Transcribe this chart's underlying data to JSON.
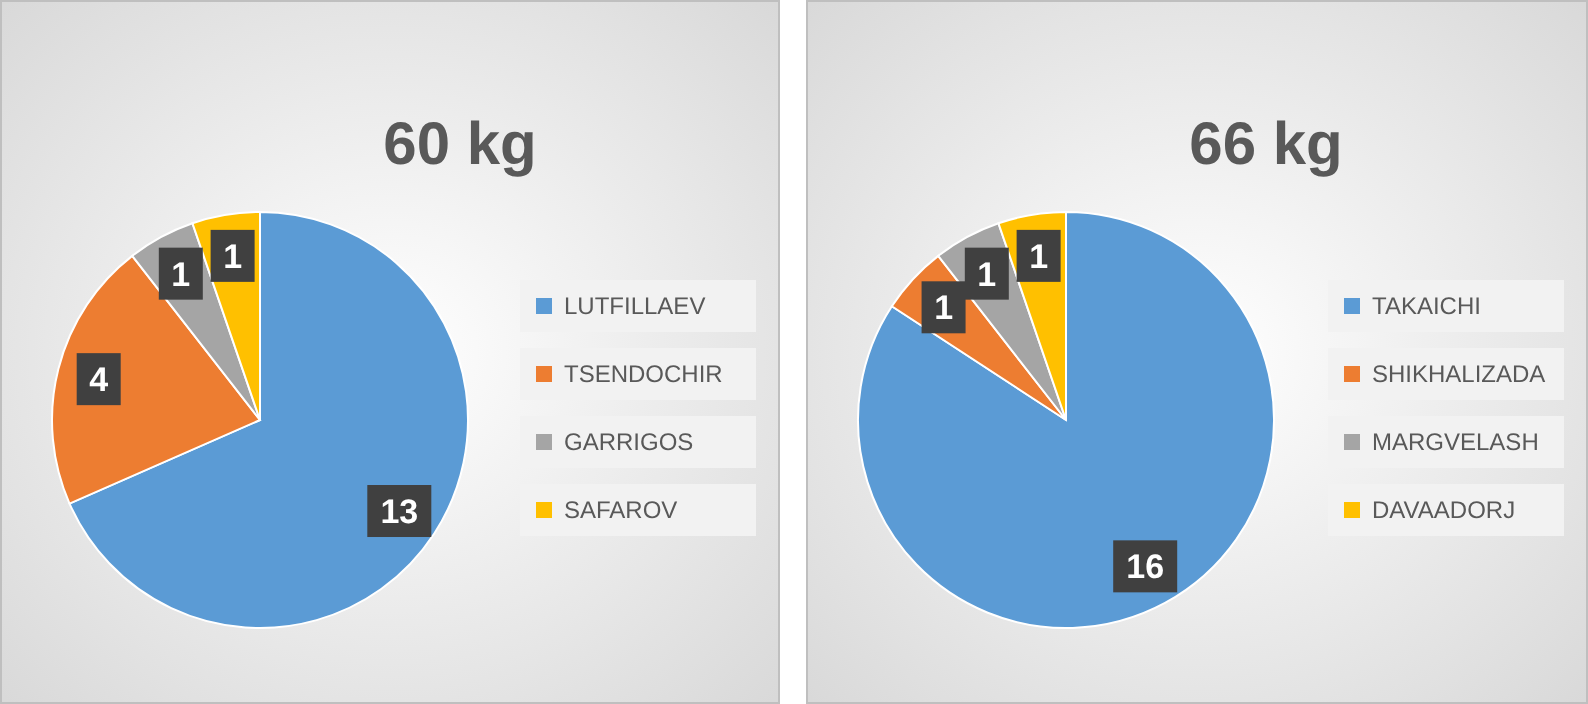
{
  "chart_data": [
    {
      "type": "pie",
      "title": "60 kg",
      "categories": [
        "LUTFILLAEV",
        "TSENDOCHIR",
        "GARRIGOS",
        "SAFAROV"
      ],
      "values": [
        13,
        4,
        1,
        1
      ],
      "colors": [
        "#5b9bd5",
        "#ed7d31",
        "#a5a5a5",
        "#ffc000"
      ],
      "data_labels": true,
      "legend": "right"
    },
    {
      "type": "pie",
      "title": "66 kg",
      "categories": [
        "TAKAICHI",
        "SHIKHALIZADA",
        "MARGVELASH",
        "DAVAADORJ"
      ],
      "values": [
        16,
        1,
        1,
        1
      ],
      "colors": [
        "#5b9bd5",
        "#ed7d31",
        "#a5a5a5",
        "#ffc000"
      ],
      "data_labels": true,
      "legend": "right"
    }
  ]
}
